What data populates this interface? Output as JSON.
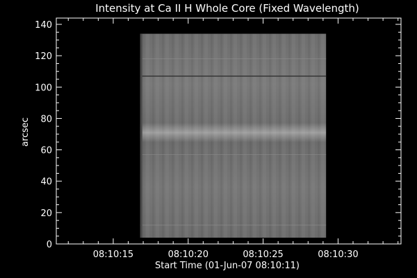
{
  "chart_data": {
    "type": "heatmap",
    "title": "Intensity at Ca II H Whole Core (Fixed Wavelength)",
    "xlabel": "Start Time (01-Jun-07 08:10:11)",
    "ylabel": "arcsec",
    "x_start_seconds": 11,
    "xlim": [
      11.2,
      34.2
    ],
    "ylim": [
      0,
      144
    ],
    "x_ticks": [
      {
        "label": "08:10:15",
        "value": 15
      },
      {
        "label": "08:10:20",
        "value": 20
      },
      {
        "label": "08:10:25",
        "value": 25
      },
      {
        "label": "08:10:30",
        "value": 30
      }
    ],
    "y_ticks": [
      0,
      20,
      40,
      60,
      80,
      100,
      120,
      140
    ],
    "image_extent": {
      "x": [
        16.8,
        29.2
      ],
      "y": [
        4,
        134
      ]
    },
    "grid": false,
    "legend": "none",
    "colors": {
      "background": "#000000",
      "axes": "#ffffff",
      "text": "#ffffff"
    },
    "colormap": "grayscale",
    "features": [
      {
        "type": "bright_band",
        "y_center": 71,
        "description": "brighter horizontal band"
      },
      {
        "type": "dark_line",
        "y": 107
      },
      {
        "type": "faint_line",
        "y": 118
      },
      {
        "type": "faint_line",
        "y": 57
      },
      {
        "type": "faint_line",
        "y": 12
      }
    ]
  }
}
